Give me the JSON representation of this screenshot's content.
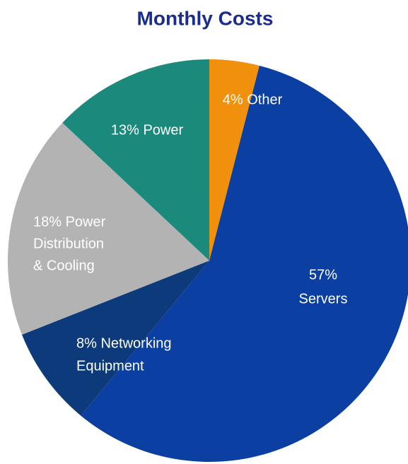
{
  "chart_data": {
    "type": "pie",
    "title": "Monthly Costs",
    "values": [
      4,
      57,
      8,
      18,
      13
    ],
    "value_labels": [
      [
        "4% Other"
      ],
      [
        "57%",
        "Servers"
      ],
      [
        "8% Networking",
        "Equipment"
      ],
      [
        "18% Power",
        "Distribution",
        "& Cooling"
      ],
      [
        "13% Power"
      ]
    ],
    "colors": [
      "#f0900c",
      "#0b3fa1",
      "#0c3a7a",
      "#b3b3b3",
      "#1b8a7c"
    ]
  }
}
